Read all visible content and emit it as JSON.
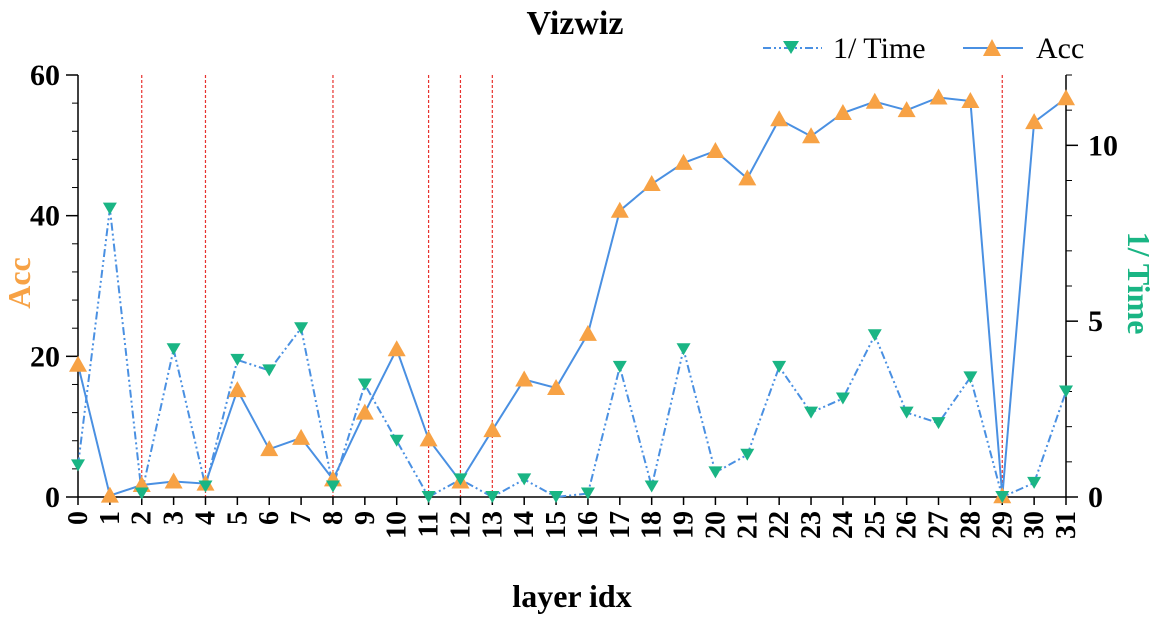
{
  "chart_data": {
    "type": "line",
    "title": "Vizwiz",
    "xlabel": "layer idx",
    "ylabel_left": "Acc",
    "ylabel_right": "1/ Time",
    "x": [
      0,
      1,
      2,
      3,
      4,
      5,
      6,
      7,
      8,
      9,
      10,
      11,
      12,
      13,
      14,
      15,
      16,
      17,
      18,
      19,
      20,
      21,
      22,
      23,
      24,
      25,
      26,
      27,
      28,
      29,
      30,
      31
    ],
    "x_tick_labels": [
      "0",
      "1",
      "2",
      "3",
      "4",
      "5",
      "6",
      "7",
      "8",
      "9",
      "10",
      "11",
      "12",
      "13",
      "14",
      "15",
      "16",
      "17",
      "18",
      "19",
      "20",
      "21",
      "22",
      "23",
      "24",
      "25",
      "26",
      "27",
      "28",
      "29",
      "30",
      "31"
    ],
    "ylim_left": [
      0,
      60
    ],
    "ylim_right": [
      0,
      12
    ],
    "left_ticks": [
      "0",
      "20",
      "40",
      "60"
    ],
    "left_tick_values": [
      0,
      20,
      40,
      60
    ],
    "right_ticks": [
      "0",
      "5",
      "10"
    ],
    "right_tick_values": [
      0,
      5,
      10
    ],
    "highlight_layers": [
      2,
      4,
      8,
      11,
      12,
      13,
      29
    ],
    "series": [
      {
        "name": "Acc",
        "axis": "left",
        "color": "#4a90e2",
        "marker_color": "#f7a245",
        "marker": "triangle-up",
        "line_style": "solid",
        "values": [
          18.8,
          0.2,
          1.7,
          2.2,
          1.9,
          15.2,
          6.8,
          8.4,
          2.5,
          12.0,
          21.0,
          8.2,
          2.2,
          9.5,
          16.7,
          15.5,
          23.2,
          40.7,
          44.5,
          47.5,
          49.2,
          45.3,
          53.7,
          51.3,
          54.6,
          56.2,
          55.0,
          56.8,
          56.3,
          0.1,
          53.3,
          56.7
        ]
      },
      {
        "name": "1/ Time",
        "axis": "right",
        "color": "#4a90e2",
        "marker_color": "#1ab584",
        "marker": "triangle-down",
        "line_style": "dash-dot-dot",
        "values": [
          0.9,
          8.2,
          0.1,
          4.2,
          0.3,
          3.9,
          3.6,
          4.8,
          0.3,
          3.2,
          1.6,
          0.0,
          0.5,
          0.0,
          0.5,
          0.0,
          0.1,
          3.7,
          0.3,
          4.2,
          0.7,
          1.2,
          3.7,
          2.4,
          2.8,
          4.6,
          2.4,
          2.1,
          3.4,
          0.0,
          0.4,
          3.0
        ]
      }
    ],
    "colors": {
      "line": "#4a90e2",
      "acc_marker": "#f7a245",
      "time_marker": "#1ab584",
      "acc_label": "#f7a245",
      "time_label": "#1ab584",
      "highlight": "#e8322e"
    },
    "grid": false,
    "legend_position": "top-right"
  }
}
